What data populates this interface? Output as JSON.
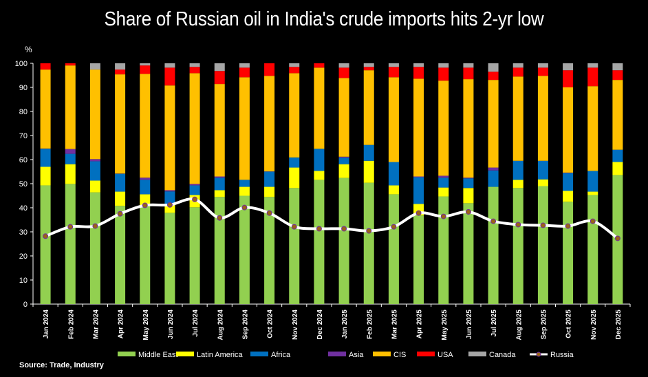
{
  "chart_data": {
    "type": "bar",
    "stacked": true,
    "title": "Share of Russian oil in India's crude imports hits 2-yr low",
    "ylabel": "%",
    "ylim": [
      0,
      100
    ],
    "yticks": [
      0,
      10,
      20,
      30,
      40,
      50,
      60,
      70,
      80,
      90,
      100
    ],
    "grid": false,
    "legend_position": "bottom",
    "source": "Source: Trade, Industry",
    "categories": [
      "Jan 2024",
      "Feb 2024",
      "Mar 2024",
      "Apr 2024",
      "May 2024",
      "Jun 2024",
      "Jul 2024",
      "Aug 2024",
      "Sep 2024",
      "Oct 2024",
      "Nov 2024",
      "Dec 2024",
      "Jan 2025",
      "Feb 2025",
      "Mar 2025",
      "Apr 2025",
      "May 2025",
      "Jun 2025",
      "Jul 2025",
      "Aug 2025",
      "Sep 2025",
      "Oct 2025",
      "Nov 2025",
      "Dec 2025"
    ],
    "series": [
      {
        "name": "Middle East",
        "color": "#92d050",
        "values": [
          49.3,
          49.9,
          46.4,
          40.8,
          41.0,
          37.9,
          40.2,
          44.5,
          45.0,
          44.5,
          48.2,
          51.6,
          52.4,
          50.4,
          45.6,
          36.8,
          44.7,
          41.9,
          48.7,
          48.2,
          49.0,
          42.5,
          45.3,
          53.6
        ]
      },
      {
        "name": "Latin America",
        "color": "#ffff00",
        "values": [
          7.7,
          8.2,
          4.9,
          5.9,
          4.6,
          3.7,
          5.1,
          2.8,
          3.7,
          4.2,
          8.5,
          3.7,
          5.7,
          9.1,
          3.7,
          4.8,
          3.7,
          6.3,
          0,
          3.4,
          2.8,
          4.5,
          1.4,
          5.4
        ]
      },
      {
        "name": "Africa",
        "color": "#0070c0",
        "values": [
          7.5,
          4.3,
          8.0,
          7.4,
          6.0,
          5.2,
          4.0,
          5.2,
          2.9,
          6.3,
          4.2,
          9.2,
          2.7,
          6.6,
          9.7,
          11.1,
          4.1,
          4.0,
          6.8,
          7.9,
          7.7,
          7.4,
          8.6,
          5.1
        ]
      },
      {
        "name": "Asia",
        "color": "#7030a0",
        "values": [
          0.1,
          2.0,
          0.9,
          0.1,
          0.9,
          0.5,
          0.6,
          0.5,
          0,
          0.1,
          0,
          0,
          0.4,
          0,
          0,
          0.3,
          0.8,
          0.3,
          1.2,
          0,
          0,
          0.2,
          0,
          0
        ]
      },
      {
        "name": "CIS",
        "color": "#ffc000",
        "values": [
          32.8,
          34.7,
          37.2,
          41.2,
          43.1,
          43.5,
          46.0,
          38.4,
          42.6,
          39.7,
          35.0,
          33.7,
          32.7,
          31.0,
          35.2,
          40.6,
          39.5,
          40.9,
          36.4,
          35.0,
          35.3,
          35.4,
          35.2,
          29.0
        ]
      },
      {
        "name": "USA",
        "color": "#ff0000",
        "values": [
          2.6,
          0.9,
          0,
          2.0,
          3.5,
          7.4,
          2.6,
          5.4,
          4.0,
          5.2,
          2.6,
          1.8,
          4.3,
          1.4,
          4.3,
          4.9,
          5.4,
          4.8,
          3.4,
          3.7,
          3.4,
          7.1,
          7.7,
          4.0
        ]
      },
      {
        "name": "Canada",
        "color": "#a6a6a6",
        "values": [
          0,
          0,
          2.6,
          2.6,
          0.9,
          1.8,
          1.5,
          3.2,
          1.8,
          0,
          1.5,
          0,
          1.8,
          1.5,
          1.5,
          1.5,
          1.8,
          1.8,
          3.5,
          1.8,
          1.8,
          2.9,
          1.8,
          2.9
        ]
      }
    ],
    "line_series": {
      "name": "Russia",
      "color": "#ffffff",
      "marker_color": "#996515",
      "values": [
        28.2,
        32.1,
        32.4,
        37.5,
        41.0,
        41.2,
        43.5,
        35.8,
        40.1,
        37.8,
        32.1,
        31.3,
        31.3,
        30.4,
        32.1,
        37.8,
        36.4,
        38.3,
        34.4,
        33.0,
        32.7,
        32.4,
        34.4,
        27.3
      ]
    }
  }
}
